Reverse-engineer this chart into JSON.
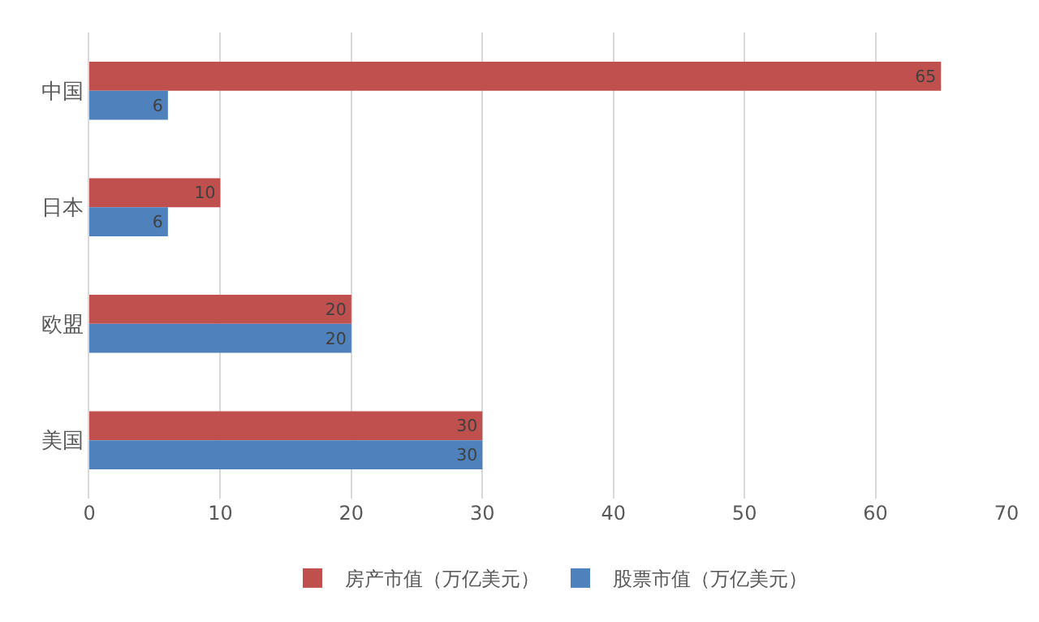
{
  "chart_data": {
    "type": "bar",
    "orientation": "horizontal",
    "categories": [
      "中国",
      "日本",
      "欧盟",
      "美国"
    ],
    "series": [
      {
        "name": "房产市值（万亿美元）",
        "color": "#c0504d",
        "values": [
          65,
          10,
          20,
          30
        ]
      },
      {
        "name": "股票市值（万亿美元）",
        "color": "#4f81bd",
        "values": [
          6,
          6,
          20,
          30
        ]
      }
    ],
    "xlim": [
      0,
      70
    ],
    "xticks": [
      0,
      10,
      20,
      30,
      40,
      50,
      60,
      70
    ],
    "grid": "x",
    "legend": "bottom",
    "data_labels": true
  }
}
